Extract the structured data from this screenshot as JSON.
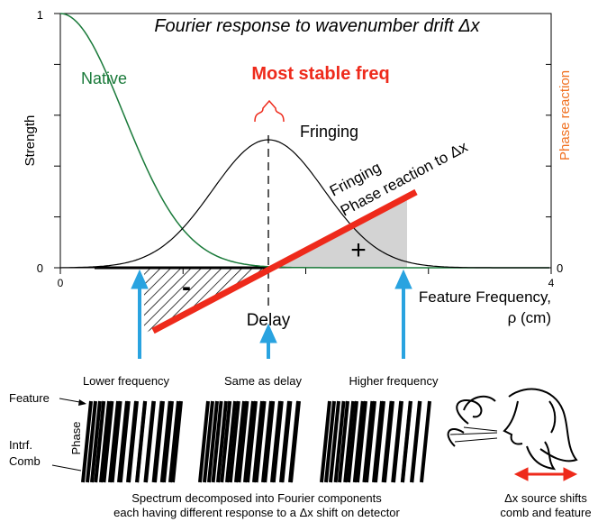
{
  "title": "Fourier response to wavenumber drift Δx",
  "y_axis_label": "Strength",
  "y2_axis_label": "Phase reaction",
  "y_tick_labels": [
    "1",
    "0"
  ],
  "y2_tick_label": "0",
  "x_tick_labels": [
    "0",
    "4"
  ],
  "x_axis_label": [
    "Feature Frequency,",
    "ρ (cm)"
  ],
  "curve_labels": {
    "native": "Native",
    "fringing": "Fringing",
    "most_stable": "Most stable freq",
    "phase_reaction": [
      "Fringing",
      "Phase reaction to Δx"
    ]
  },
  "signs": {
    "plus": "+",
    "minus": "-"
  },
  "delay_label": "Delay",
  "panels": [
    "Lower frequency",
    "Same as delay",
    "Higher frequency"
  ],
  "side_labels": {
    "feature": "Feature",
    "phase": "Phase",
    "comb": [
      "Intrf.",
      "Comb"
    ]
  },
  "caption": [
    "Spectrum decomposed into Fourier components",
    "each having different response to a Δx shift on detector"
  ],
  "source_caption": [
    "Δx source shifts",
    "comb and feature"
  ]
}
